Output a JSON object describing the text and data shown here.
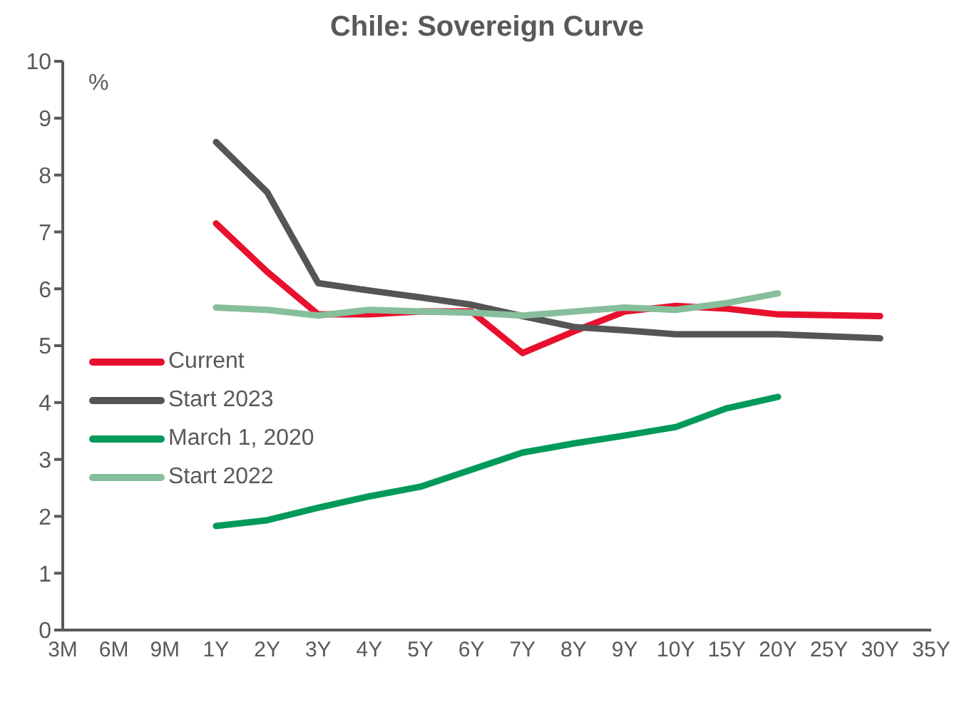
{
  "chart_data": {
    "type": "line",
    "title": "Chile: Sovereign Curve",
    "ylabel": "%",
    "categories": [
      "3M",
      "6M",
      "9M",
      "1Y",
      "2Y",
      "3Y",
      "4Y",
      "5Y",
      "6Y",
      "7Y",
      "8Y",
      "9Y",
      "10Y",
      "15Y",
      "20Y",
      "25Y",
      "30Y",
      "35Y"
    ],
    "series": [
      {
        "name": "Current",
        "color": "#e8112d",
        "values": [
          null,
          null,
          null,
          7.15,
          6.3,
          5.55,
          5.55,
          5.6,
          5.6,
          4.87,
          5.25,
          5.6,
          5.7,
          5.65,
          5.55,
          null,
          5.52,
          null
        ]
      },
      {
        "name": "Start 2023",
        "color": "#555555",
        "values": [
          null,
          null,
          null,
          8.58,
          7.7,
          6.1,
          5.97,
          5.85,
          5.72,
          5.52,
          5.33,
          5.27,
          5.2,
          5.2,
          5.2,
          null,
          5.13,
          null
        ]
      },
      {
        "name": "March 1, 2020",
        "color": "#009a5a",
        "values": [
          null,
          null,
          null,
          1.83,
          1.93,
          2.15,
          2.35,
          2.52,
          2.82,
          3.12,
          3.28,
          3.42,
          3.57,
          3.9,
          4.1,
          null,
          null,
          null
        ]
      },
      {
        "name": "Start 2022",
        "color": "#86bf9b",
        "values": [
          null,
          null,
          null,
          5.67,
          5.63,
          5.53,
          5.63,
          5.6,
          5.58,
          5.53,
          5.6,
          5.67,
          5.63,
          5.75,
          5.92,
          null,
          null,
          null
        ]
      }
    ],
    "ylim": [
      0,
      10
    ],
    "yticks": [
      0,
      1,
      2,
      3,
      4,
      5,
      6,
      7,
      8,
      9,
      10
    ],
    "grid": false,
    "legend": "left",
    "marker": "none",
    "line_style": "solid"
  }
}
